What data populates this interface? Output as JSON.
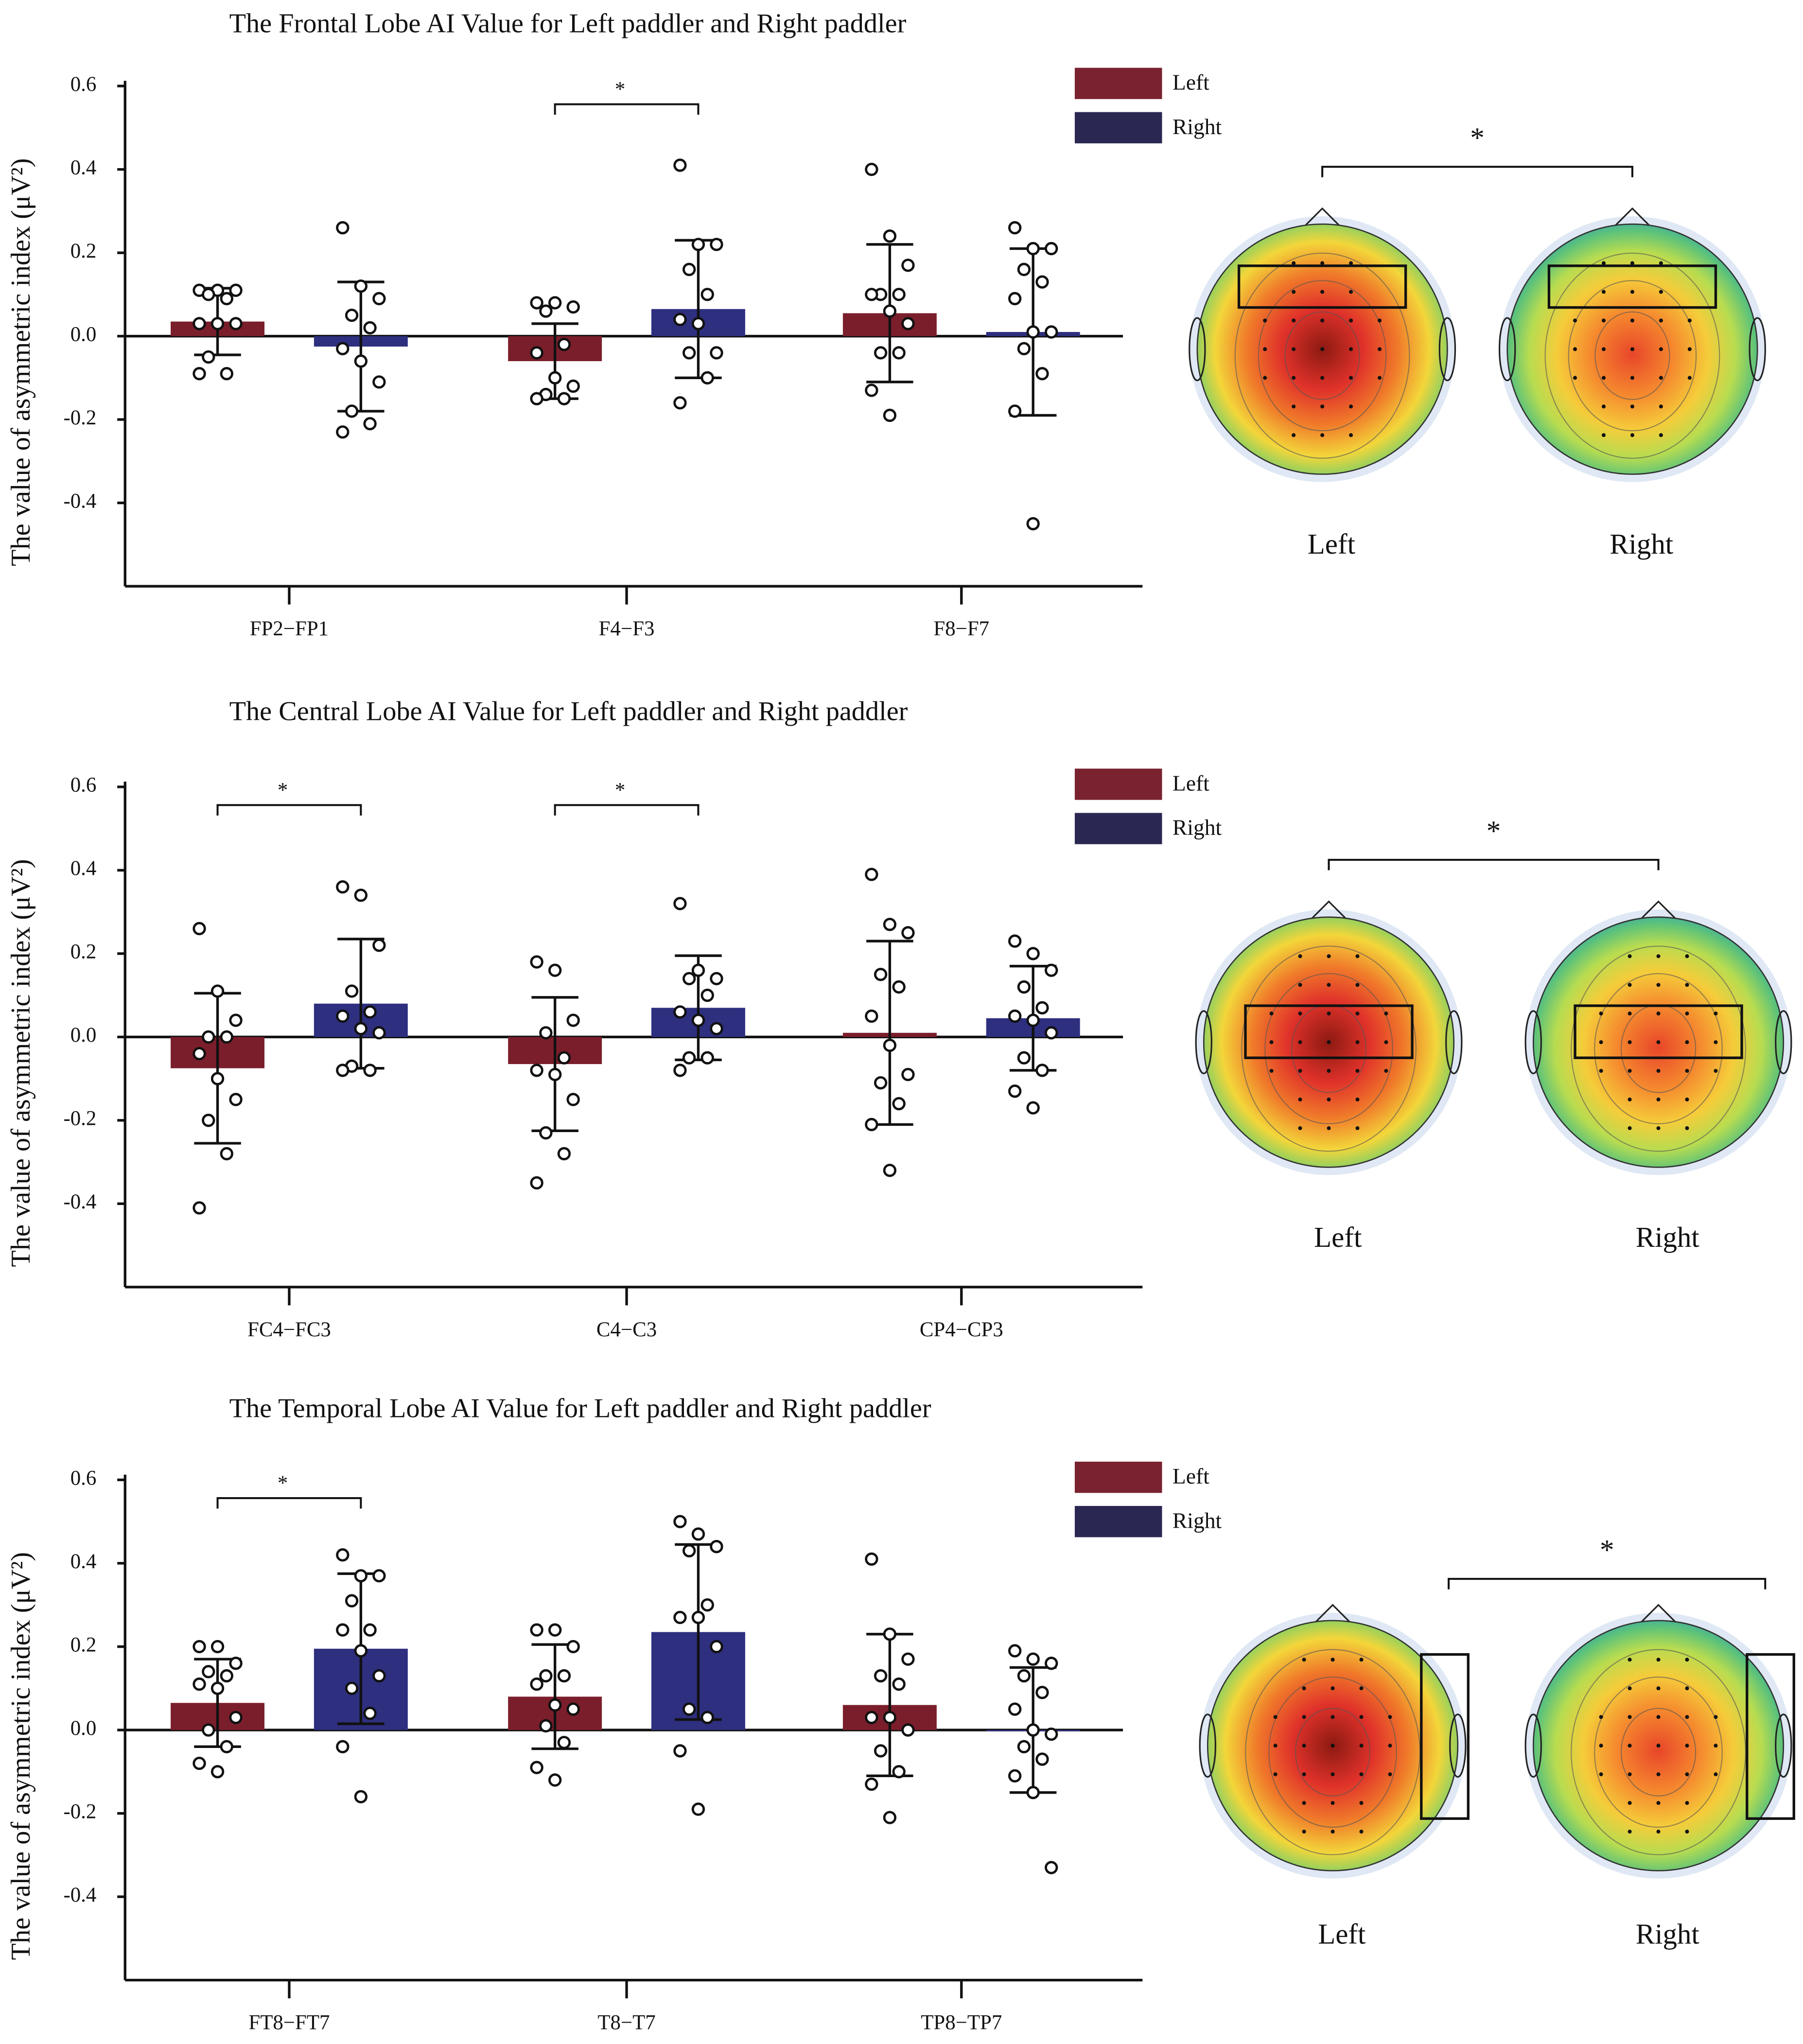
{
  "chart_data": [
    {
      "type": "bar",
      "title": "The Frontal Lobe AI Value for Left paddler and Right paddler",
      "ylabel": "The value of asymmetric index (μV²)",
      "categories": [
        "FP2−FP1",
        "F4−F3",
        "F8−F7"
      ],
      "ylim": [
        -0.6,
        0.6
      ],
      "yticks": [
        -0.4,
        -0.2,
        {
          "value": 0,
          "label": "0.0"
        },
        0.2,
        0.4,
        0.6
      ],
      "series": [
        {
          "name": "Left",
          "color": "#7b1e2b",
          "legend_color": "#7a2230",
          "values": [
            0.035,
            -0.06,
            0.055
          ],
          "errors": [
            0.08,
            0.09,
            0.165
          ],
          "points": [
            [
              0.11,
              0.11,
              0.11,
              0.1,
              0.09,
              0.03,
              0.03,
              0.03,
              -0.05,
              -0.09,
              -0.09
            ],
            [
              0.08,
              0.08,
              0.07,
              0.06,
              -0.02,
              -0.04,
              -0.1,
              -0.12,
              -0.14,
              -0.15,
              -0.15
            ],
            [
              0.4,
              0.24,
              0.17,
              0.1,
              0.1,
              0.1,
              0.06,
              0.03,
              -0.04,
              -0.04,
              -0.13,
              -0.19
            ]
          ]
        },
        {
          "name": "Right",
          "color": "#2e2f7f",
          "legend_color": "#2a2852",
          "values": [
            -0.025,
            0.065,
            0.01
          ],
          "errors": [
            0.155,
            0.165,
            0.2
          ],
          "points": [
            [
              0.26,
              0.12,
              0.09,
              0.05,
              0.02,
              -0.03,
              -0.06,
              -0.11,
              -0.18,
              -0.21,
              -0.23
            ],
            [
              0.41,
              0.22,
              0.22,
              0.16,
              0.1,
              0.04,
              0.03,
              -0.04,
              -0.04,
              -0.1,
              -0.16
            ],
            [
              0.26,
              0.21,
              0.21,
              0.16,
              0.13,
              0.09,
              0.01,
              0.01,
              -0.03,
              -0.09,
              -0.18,
              -0.45
            ]
          ]
        }
      ],
      "significance": [
        {
          "label": "*",
          "category": "F4−F3"
        }
      ],
      "topomap": {
        "labels": [
          "Left",
          "Right"
        ],
        "significance": "*",
        "roi": "frontal"
      }
    },
    {
      "type": "bar",
      "title": "The Central Lobe AI Value for Left paddler and Right paddler",
      "ylabel": "The value of asymmetric index (μV²)",
      "categories": [
        "FC4−FC3",
        "C4−C3",
        "CP4−CP3"
      ],
      "ylim": [
        -0.6,
        0.6
      ],
      "yticks": [
        -0.4,
        -0.2,
        {
          "value": 0,
          "label": "0.0"
        },
        0.2,
        0.4,
        0.6
      ],
      "series": [
        {
          "name": "Left",
          "color": "#7b1e2b",
          "legend_color": "#7a2230",
          "values": [
            -0.075,
            -0.065,
            0.01
          ],
          "errors": [
            0.18,
            0.16,
            0.22
          ],
          "points": [
            [
              0.26,
              0.11,
              0.04,
              0,
              0,
              -0.04,
              -0.1,
              -0.15,
              -0.2,
              -0.28,
              -0.41
            ],
            [
              0.18,
              0.16,
              0.04,
              0.01,
              -0.05,
              -0.08,
              -0.09,
              -0.15,
              -0.23,
              -0.28,
              -0.35
            ],
            [
              0.39,
              0.27,
              0.25,
              0.15,
              0.12,
              0.05,
              -0.02,
              -0.09,
              -0.11,
              -0.16,
              -0.21,
              -0.32
            ]
          ]
        },
        {
          "name": "Right",
          "color": "#2e2f7f",
          "legend_color": "#2a2852",
          "values": [
            0.08,
            0.07,
            0.045
          ],
          "errors": [
            0.155,
            0.125,
            0.125
          ],
          "points": [
            [
              0.36,
              0.34,
              0.22,
              0.11,
              0.06,
              0.05,
              0.02,
              0.01,
              -0.07,
              -0.08,
              -0.08
            ],
            [
              0.32,
              0.16,
              0.14,
              0.14,
              0.1,
              0.06,
              0.04,
              0.02,
              -0.05,
              -0.05,
              -0.08
            ],
            [
              0.23,
              0.2,
              0.16,
              0.12,
              0.07,
              0.05,
              0.04,
              0.01,
              -0.05,
              -0.08,
              -0.13,
              -0.17
            ]
          ]
        }
      ],
      "significance": [
        {
          "label": "*",
          "category": "FC4−FC3"
        },
        {
          "label": "*",
          "category": "C4−C3"
        }
      ],
      "topomap": {
        "labels": [
          "Left",
          "Right"
        ],
        "significance": "*",
        "roi": "central"
      }
    },
    {
      "type": "bar",
      "title": "The Temporal Lobe AI Value for Left paddler and Right paddler",
      "ylabel": "The value of asymmetric index (μV²)",
      "categories": [
        "FT8−FT7",
        "T8−T7",
        "TP8−TP7"
      ],
      "ylim": [
        -0.6,
        0.6
      ],
      "yticks": [
        -0.4,
        -0.2,
        {
          "value": 0,
          "label": "0.0"
        },
        0.2,
        0.4,
        0.6
      ],
      "series": [
        {
          "name": "Left",
          "color": "#7b1e2b",
          "legend_color": "#7a2230",
          "values": [
            0.065,
            0.08,
            0.06
          ],
          "errors": [
            0.105,
            0.125,
            0.17
          ],
          "points": [
            [
              0.2,
              0.2,
              0.16,
              0.14,
              0.13,
              0.11,
              0.1,
              0.03,
              0,
              -0.04,
              -0.08,
              -0.1
            ],
            [
              0.24,
              0.24,
              0.2,
              0.13,
              0.13,
              0.11,
              0.06,
              0.05,
              0.01,
              -0.03,
              -0.09,
              -0.12
            ],
            [
              0.41,
              0.23,
              0.17,
              0.13,
              0.11,
              0.03,
              0.03,
              0,
              -0.05,
              -0.1,
              -0.13,
              -0.21
            ]
          ]
        },
        {
          "name": "Right",
          "color": "#2e2f7f",
          "legend_color": "#2a2852",
          "values": [
            0.195,
            0.235,
            0
          ],
          "errors": [
            0.18,
            0.21,
            0.15
          ],
          "points": [
            [
              0.42,
              0.37,
              0.37,
              0.31,
              0.24,
              0.24,
              0.19,
              0.13,
              0.1,
              0.04,
              -0.04,
              -0.16
            ],
            [
              0.5,
              0.47,
              0.44,
              0.43,
              0.3,
              0.27,
              0.27,
              0.2,
              0.05,
              0.03,
              -0.05,
              -0.19
            ],
            [
              0.19,
              0.17,
              0.16,
              0.13,
              0.09,
              0.05,
              0,
              -0.01,
              -0.04,
              -0.07,
              -0.11,
              -0.15,
              -0.33
            ]
          ]
        }
      ],
      "significance": [
        {
          "label": "*",
          "category": "FT8−FT7"
        }
      ],
      "topomap": {
        "labels": [
          "Left",
          "Right"
        ],
        "significance": "*",
        "roi": "temporal"
      }
    }
  ]
}
